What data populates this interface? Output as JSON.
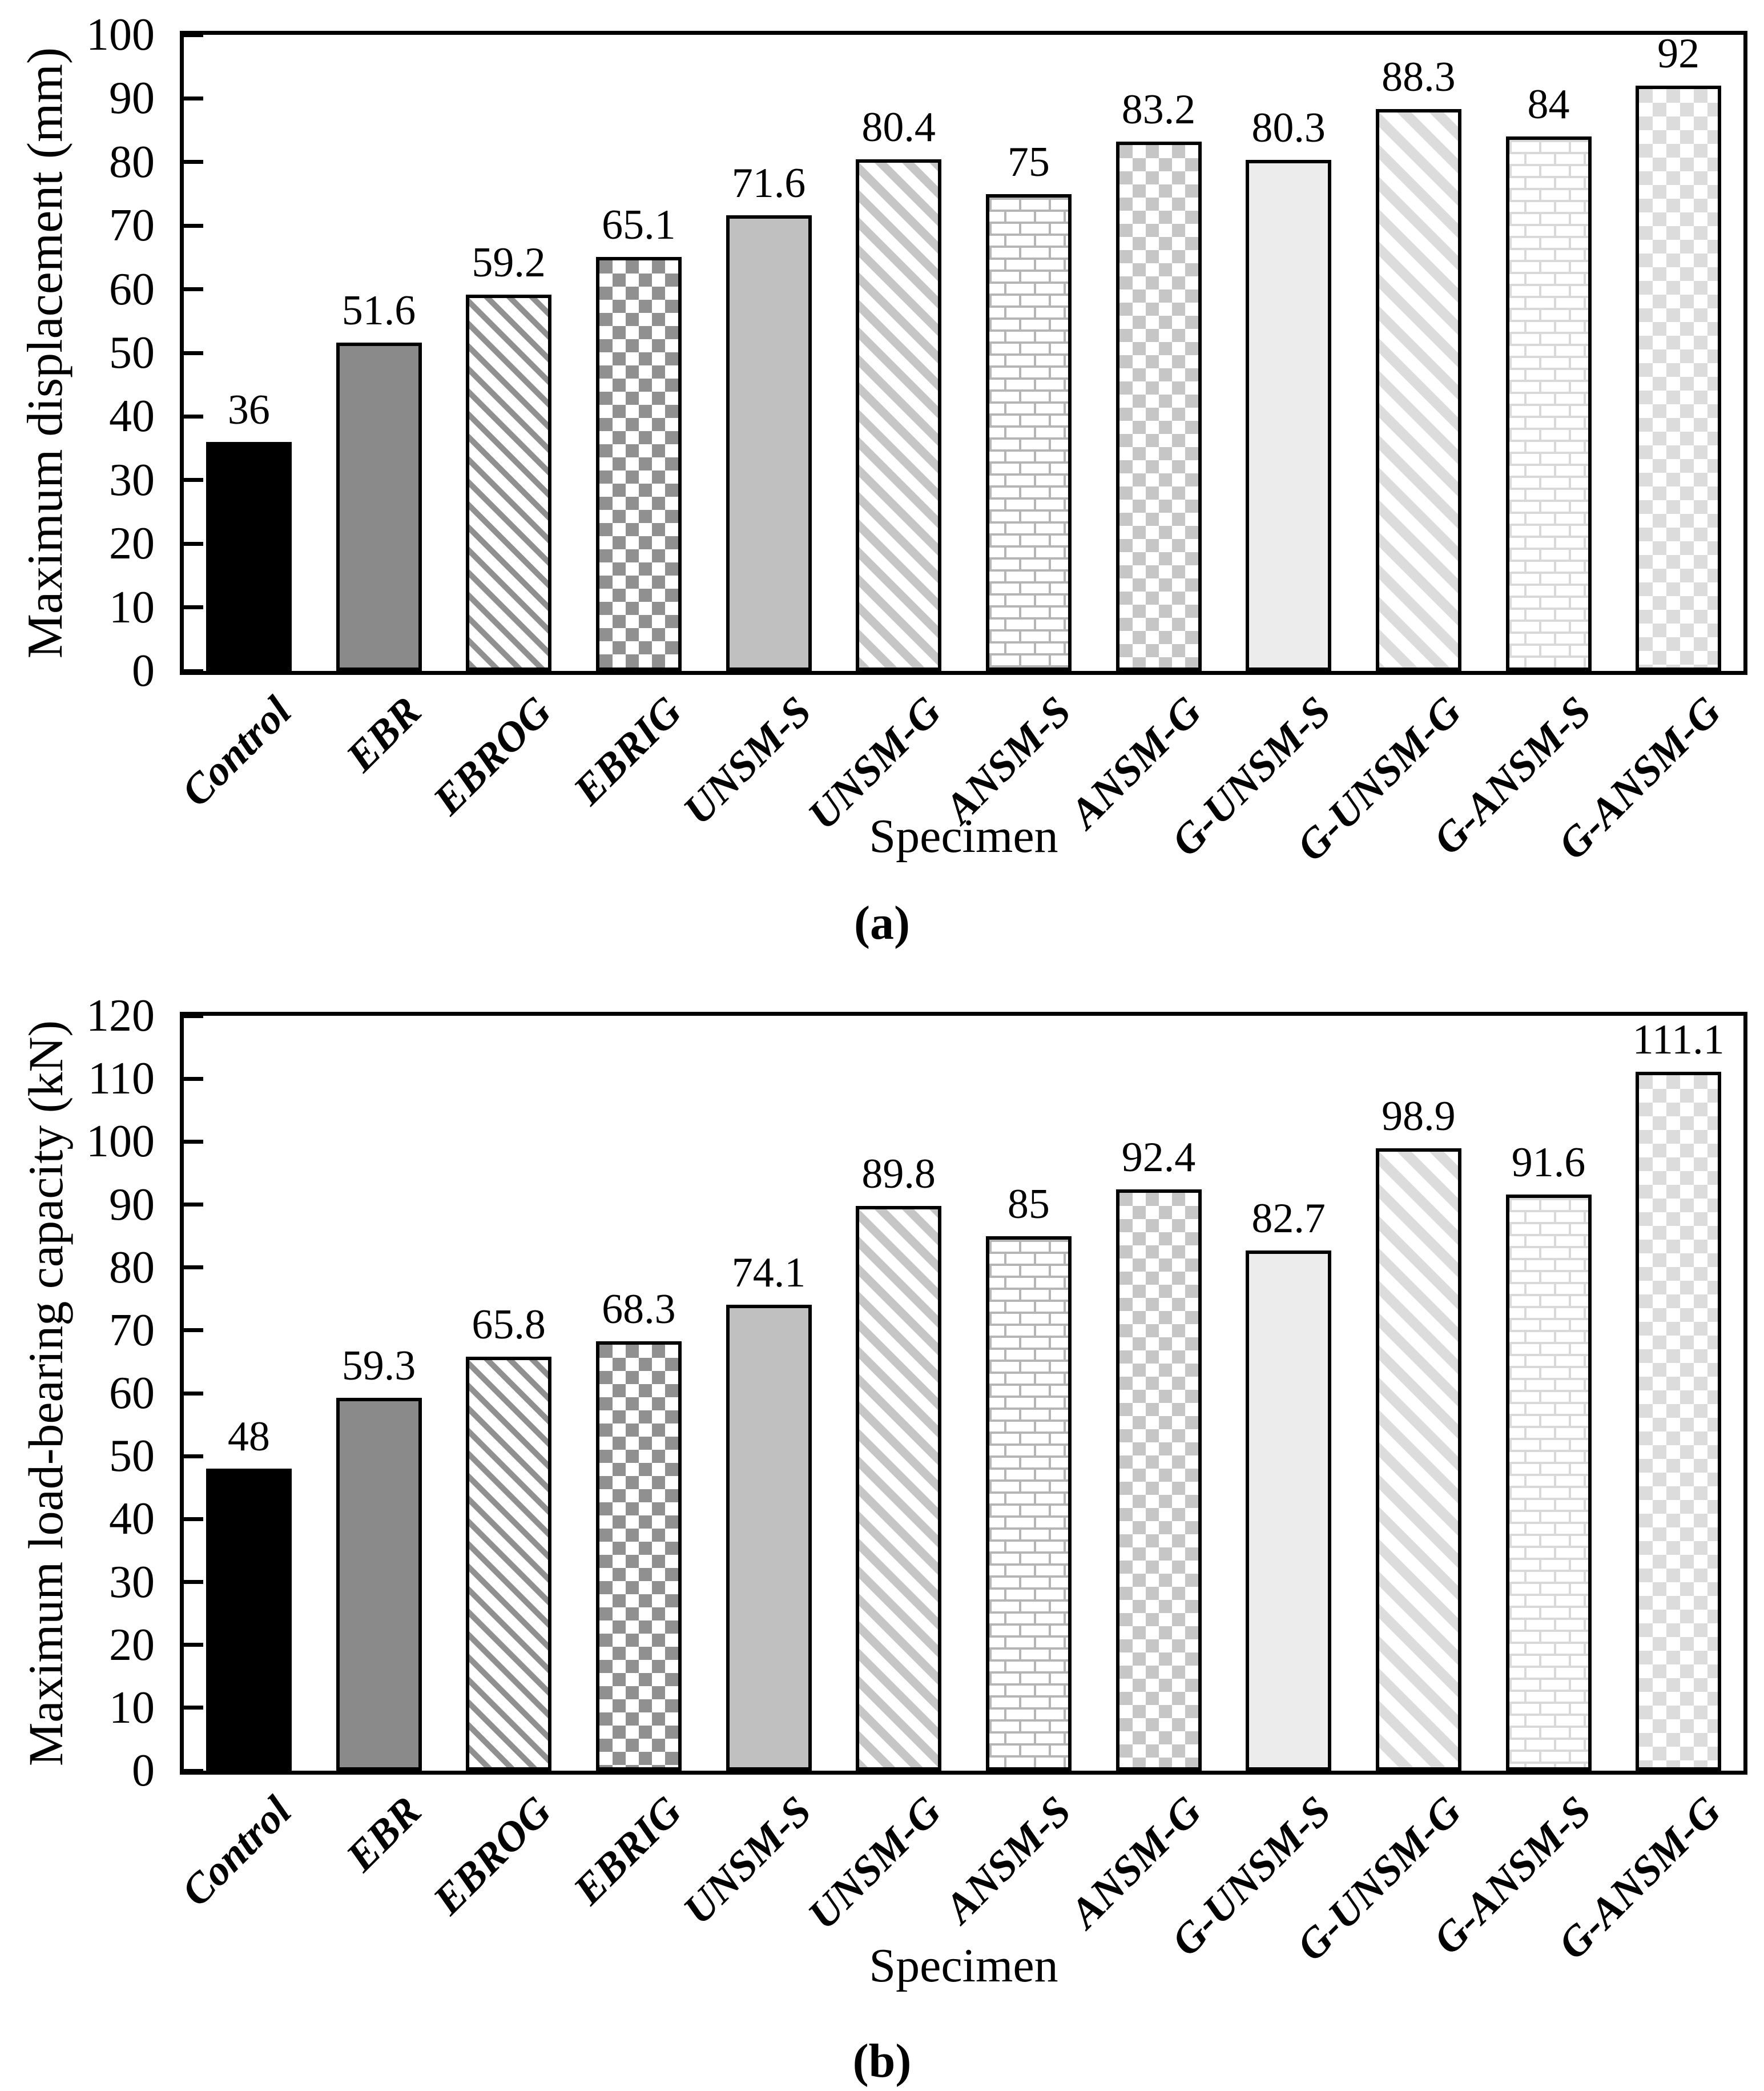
{
  "page": {
    "background": "#ffffff"
  },
  "charts_common": {
    "x_axis_title": "Specimen",
    "categories": [
      "Control",
      "EBR",
      "EBROG",
      "EBRIG",
      "UNSM-S",
      "UNSM-G",
      "ANSM-S",
      "ANSM-G",
      "G-UNSM-S",
      "G-UNSM-G",
      "G-ANSM-S",
      "G-ANSM-G"
    ],
    "bar_fill_styles": [
      "solid-black",
      "solid-dark-gray",
      "diagonal-hatch-dark",
      "checkerboard-dark",
      "solid-mid-gray",
      "diagonal-hatch-mid",
      "brick-mid",
      "checkerboard-mid",
      "solid-light-gray",
      "diagonal-hatch-light",
      "brick-light",
      "checkerboard-light"
    ],
    "colors": {
      "bar_outline": "#000000",
      "axis": "#000000",
      "text": "#000000",
      "solid_black": "#000000",
      "solid_dark_gray": "#8a8a8a",
      "solid_mid_gray": "#c0c0c0",
      "solid_light_gray": "#ececec",
      "pattern_dark": "#909090",
      "pattern_mid": "#c6c6c6",
      "pattern_light": "#dcdcdc",
      "brick_mid": "#b5b5b5",
      "brick_light": "#d9d9d9"
    }
  },
  "chart_data": [
    {
      "id": "a",
      "type": "bar",
      "caption": "(a)",
      "xlabel": "Specimen",
      "ylabel": "Maximum displacement (mm)",
      "ylim": [
        0,
        100
      ],
      "ytick_step": 10,
      "yticks": [
        0,
        10,
        20,
        30,
        40,
        50,
        60,
        70,
        80,
        90,
        100
      ],
      "grid": false,
      "legend": "none",
      "categories": [
        "Control",
        "EBR",
        "EBROG",
        "EBRIG",
        "UNSM-S",
        "UNSM-G",
        "ANSM-S",
        "ANSM-G",
        "G-UNSM-S",
        "G-UNSM-G",
        "G-ANSM-S",
        "G-ANSM-G"
      ],
      "values": [
        36,
        51.6,
        59.2,
        65.1,
        71.6,
        80.4,
        75,
        83.2,
        80.3,
        88.3,
        84,
        92
      ],
      "value_labels": [
        "36",
        "51.6",
        "59.2",
        "65.1",
        "71.6",
        "80.4",
        "75",
        "83.2",
        "80.3",
        "88.3",
        "84",
        "92"
      ],
      "bar_styles": [
        "solid-black",
        "solid-dark-gray",
        "diagonal-hatch-dark",
        "checkerboard-dark",
        "solid-mid-gray",
        "diagonal-hatch-mid",
        "brick-mid",
        "checkerboard-mid",
        "solid-light-gray",
        "diagonal-hatch-light",
        "brick-light",
        "checkerboard-light"
      ]
    },
    {
      "id": "b",
      "type": "bar",
      "caption": "(b)",
      "xlabel": "Specimen",
      "ylabel": "Maximum load-bearing capacity (kN)",
      "ylim": [
        0,
        120
      ],
      "ytick_step": 10,
      "yticks": [
        0,
        10,
        20,
        30,
        40,
        50,
        60,
        70,
        80,
        90,
        100,
        110,
        120
      ],
      "grid": false,
      "legend": "none",
      "categories": [
        "Control",
        "EBR",
        "EBROG",
        "EBRIG",
        "UNSM-S",
        "UNSM-G",
        "ANSM-S",
        "ANSM-G",
        "G-UNSM-S",
        "G-UNSM-G",
        "G-ANSM-S",
        "G-ANSM-G"
      ],
      "values": [
        48,
        59.3,
        65.8,
        68.3,
        74.1,
        89.8,
        85,
        92.4,
        82.7,
        98.9,
        91.6,
        111.1
      ],
      "value_labels": [
        "48",
        "59.3",
        "65.8",
        "68.3",
        "74.1",
        "89.8",
        "85",
        "92.4",
        "82.7",
        "98.9",
        "91.6",
        "111.1"
      ],
      "bar_styles": [
        "solid-black",
        "solid-dark-gray",
        "diagonal-hatch-dark",
        "checkerboard-dark",
        "solid-mid-gray",
        "diagonal-hatch-mid",
        "brick-mid",
        "checkerboard-mid",
        "solid-light-gray",
        "diagonal-hatch-light",
        "brick-light",
        "checkerboard-light"
      ]
    }
  ]
}
